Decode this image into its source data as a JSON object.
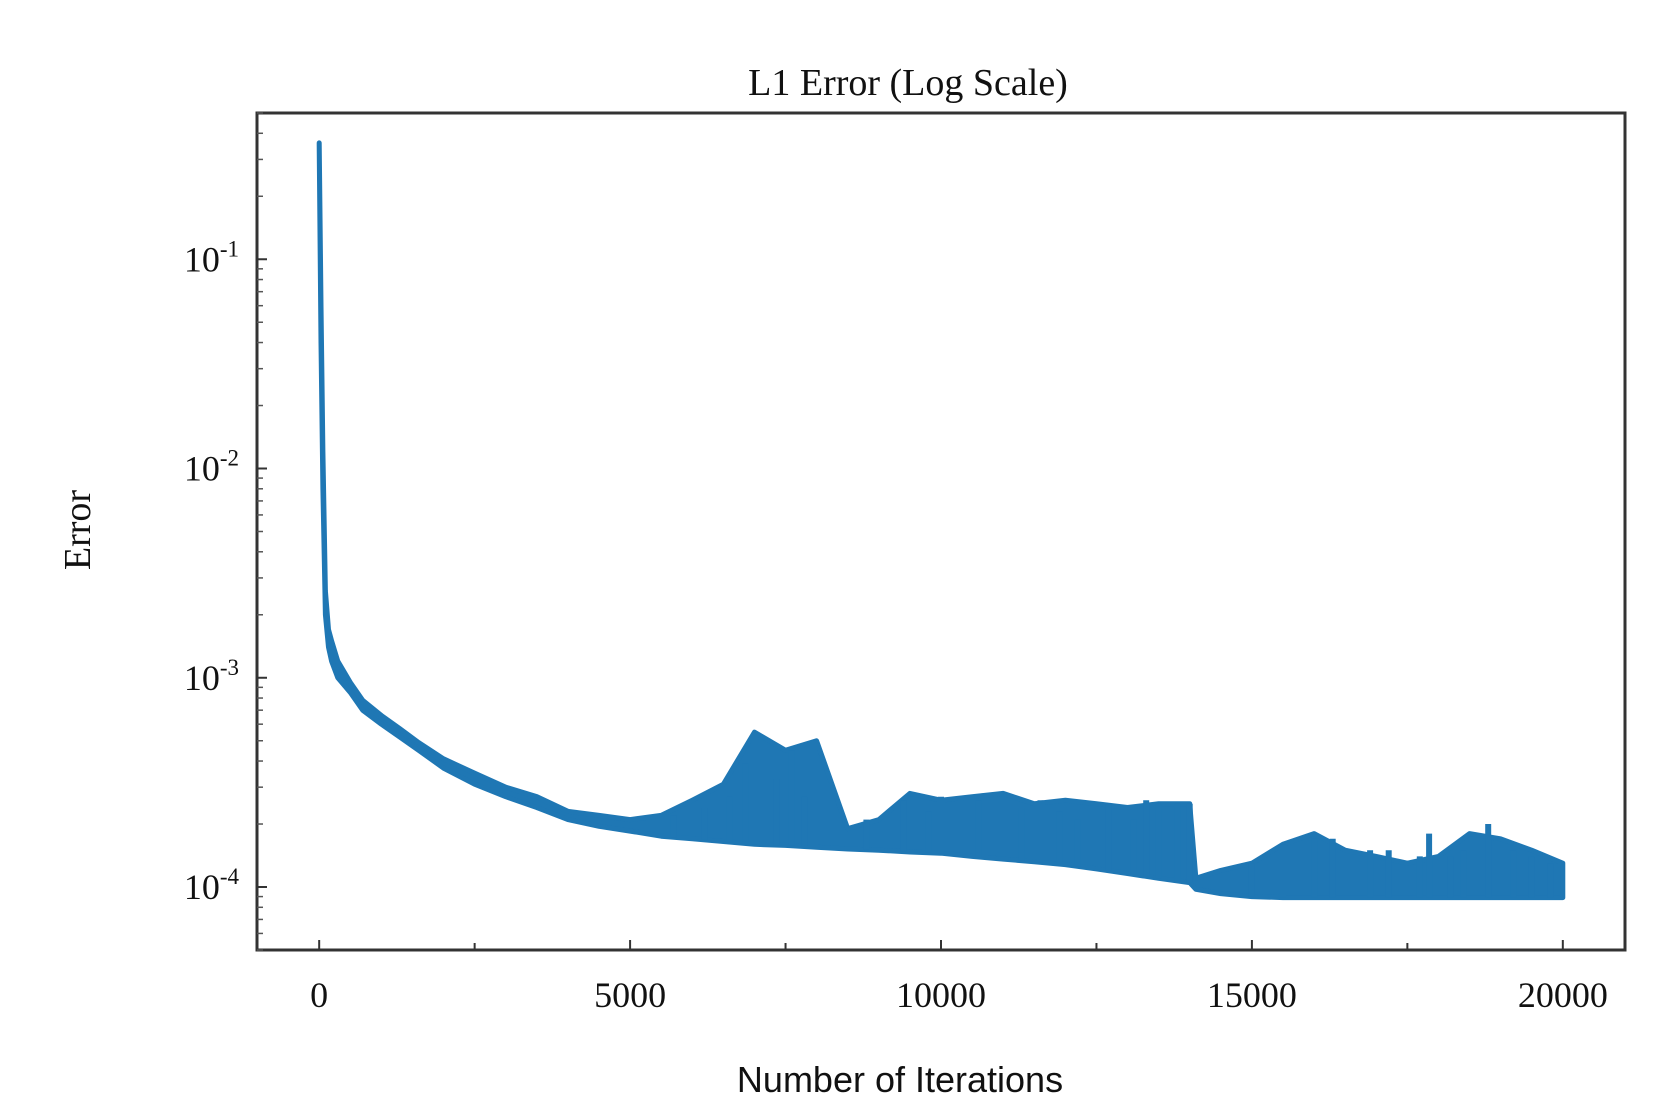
{
  "chart_data": {
    "type": "line",
    "title": "L1 Error (Log Scale)",
    "xlabel": "Number of Iterations",
    "ylabel": "Error",
    "xlim": [
      -1000,
      21000
    ],
    "ylim": [
      5e-05,
      0.5
    ],
    "yscale": "log",
    "grid": false,
    "x_ticks": [
      {
        "value": 0,
        "label": "0"
      },
      {
        "value": 5000,
        "label": "5000"
      },
      {
        "value": 10000,
        "label": "10000"
      },
      {
        "value": 15000,
        "label": "15000"
      },
      {
        "value": 20000,
        "label": "20000"
      }
    ],
    "y_ticks": [
      {
        "value": 0.1,
        "base": "10",
        "exp": "-1"
      },
      {
        "value": 0.01,
        "base": "10",
        "exp": "-2"
      },
      {
        "value": 0.001,
        "base": "10",
        "exp": "-3"
      },
      {
        "value": 0.0001,
        "base": "10",
        "exp": "-4"
      }
    ],
    "series": [
      {
        "color": "#1f77b4",
        "x": [
          0,
          30,
          60,
          100,
          150,
          200,
          300,
          500,
          700,
          1000,
          1300,
          1600,
          2000,
          2500,
          3000,
          3500,
          4000,
          4500,
          5000,
          5500,
          6000,
          6500,
          7000,
          7500,
          8000,
          8500,
          9000,
          9500,
          10000,
          10500,
          11000,
          11500,
          12000,
          12500,
          13000,
          13500,
          14000,
          14100,
          14500,
          15000,
          15500,
          16000,
          16500,
          17000,
          17500,
          18000,
          18500,
          19000,
          19500,
          20000
        ],
        "lower": [
          0.35,
          0.04,
          0.008,
          0.002,
          0.0014,
          0.0012,
          0.001,
          0.00085,
          0.0007,
          0.0006,
          0.00052,
          0.00045,
          0.00037,
          0.00031,
          0.00027,
          0.00024,
          0.00021,
          0.000195,
          0.000185,
          0.000175,
          0.00017,
          0.000165,
          0.00016,
          0.000158,
          0.000155,
          0.000152,
          0.00015,
          0.000147,
          0.000145,
          0.00014,
          0.000136,
          0.000132,
          0.000128,
          0.000122,
          0.000116,
          0.00011,
          0.000105,
          9.75e-05,
          9.3e-05,
          9e-05,
          8.9e-05,
          8.9e-05,
          8.9e-05,
          8.9e-05,
          8.9e-05,
          8.9e-05,
          8.9e-05,
          8.9e-05,
          8.9e-05,
          8.9e-05
        ],
        "upper": [
          0.36,
          0.06,
          0.012,
          0.0026,
          0.0017,
          0.0015,
          0.0012,
          0.00095,
          0.00078,
          0.00066,
          0.00057,
          0.00049,
          0.00041,
          0.00035,
          0.0003,
          0.00027,
          0.00023,
          0.00022,
          0.00021,
          0.00022,
          0.00026,
          0.00031,
          0.00055,
          0.00045,
          0.0005,
          0.00019,
          0.00021,
          0.00028,
          0.00026,
          0.00027,
          0.00028,
          0.00025,
          0.00026,
          0.00025,
          0.00024,
          0.00025,
          0.00025,
          0.00011,
          0.00012,
          0.00013,
          0.00016,
          0.00018,
          0.00015,
          0.00014,
          0.00013,
          0.00014,
          0.00018,
          0.00017,
          0.00015,
          0.00013
        ]
      }
    ],
    "spikes": [
      {
        "x": 5700,
        "y": 0.00022
      },
      {
        "x": 6200,
        "y": 0.00024
      },
      {
        "x": 6600,
        "y": 0.00027
      },
      {
        "x": 6850,
        "y": 0.00039
      },
      {
        "x": 7000,
        "y": 0.00055
      },
      {
        "x": 7350,
        "y": 0.00033
      },
      {
        "x": 7600,
        "y": 0.00045
      },
      {
        "x": 7800,
        "y": 0.00027
      },
      {
        "x": 7950,
        "y": 0.0005
      },
      {
        "x": 8800,
        "y": 0.00021
      },
      {
        "x": 9400,
        "y": 0.00026
      },
      {
        "x": 9800,
        "y": 0.00023
      },
      {
        "x": 10000,
        "y": 0.00027
      },
      {
        "x": 10600,
        "y": 0.00026
      },
      {
        "x": 10700,
        "y": 0.00028
      },
      {
        "x": 11300,
        "y": 0.00024
      },
      {
        "x": 11600,
        "y": 0.00026
      },
      {
        "x": 11900,
        "y": 0.00023
      },
      {
        "x": 12200,
        "y": 0.00021
      },
      {
        "x": 12700,
        "y": 0.00025
      },
      {
        "x": 13100,
        "y": 0.00021
      },
      {
        "x": 13300,
        "y": 0.00026
      },
      {
        "x": 13500,
        "y": 0.00025
      },
      {
        "x": 13800,
        "y": 0.00025
      },
      {
        "x": 14000,
        "y": 0.00025
      },
      {
        "x": 15000,
        "y": 0.00013
      },
      {
        "x": 15500,
        "y": 0.00016
      },
      {
        "x": 16000,
        "y": 0.00017
      },
      {
        "x": 16300,
        "y": 0.00017
      },
      {
        "x": 16900,
        "y": 0.00015
      },
      {
        "x": 17200,
        "y": 0.00015
      },
      {
        "x": 17700,
        "y": 0.00014
      },
      {
        "x": 17850,
        "y": 0.00018
      },
      {
        "x": 18200,
        "y": 0.00014
      },
      {
        "x": 18400,
        "y": 0.00015
      },
      {
        "x": 18800,
        "y": 0.0002
      },
      {
        "x": 19200,
        "y": 0.00015
      },
      {
        "x": 19500,
        "y": 0.00014
      },
      {
        "x": 19800,
        "y": 0.00013
      }
    ]
  }
}
